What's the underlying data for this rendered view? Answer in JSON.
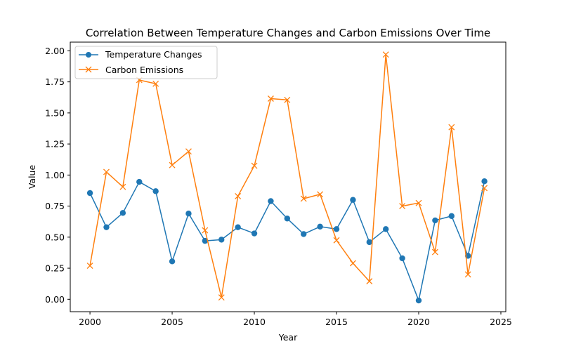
{
  "chart_data": {
    "type": "line",
    "title": "Correlation Between Temperature Changes and Carbon Emissions Over Time",
    "xlabel": "Year",
    "ylabel": "Value",
    "xlim": [
      1998.8,
      2025.3
    ],
    "ylim": [
      -0.1,
      2.07
    ],
    "xticks": [
      2000,
      2005,
      2010,
      2015,
      2020,
      2025
    ],
    "xtick_labels": [
      "2000",
      "2005",
      "2010",
      "2015",
      "2020",
      "2025"
    ],
    "yticks": [
      0.0,
      0.25,
      0.5,
      0.75,
      1.0,
      1.25,
      1.5,
      1.75,
      2.0
    ],
    "ytick_labels": [
      "0.00",
      "0.25",
      "0.50",
      "0.75",
      "1.00",
      "1.25",
      "1.50",
      "1.75",
      "2.00"
    ],
    "grid": false,
    "legend_position": "top-left",
    "x": [
      2000,
      2001,
      2002,
      2003,
      2004,
      2005,
      2006,
      2007,
      2008,
      2009,
      2010,
      2011,
      2012,
      2013,
      2014,
      2015,
      2016,
      2017,
      2018,
      2019,
      2020,
      2021,
      2022,
      2023,
      2024
    ],
    "series": [
      {
        "name": "Temperature Changes",
        "color": "#1f77b4",
        "marker": "circle",
        "values": [
          0.855,
          0.58,
          0.695,
          0.945,
          0.87,
          0.305,
          0.69,
          0.47,
          0.48,
          0.58,
          0.53,
          0.79,
          0.65,
          0.525,
          0.585,
          0.565,
          0.8,
          0.46,
          0.565,
          0.33,
          -0.01,
          0.635,
          0.67,
          0.35,
          0.95
        ]
      },
      {
        "name": "Carbon Emissions",
        "color": "#ff7f0e",
        "marker": "x",
        "values": [
          0.27,
          1.025,
          0.905,
          1.765,
          1.735,
          1.08,
          1.19,
          0.555,
          0.015,
          0.83,
          1.075,
          1.615,
          1.605,
          0.81,
          0.845,
          0.475,
          0.29,
          0.145,
          1.97,
          0.75,
          0.775,
          0.38,
          1.385,
          0.2,
          0.895
        ]
      }
    ]
  }
}
